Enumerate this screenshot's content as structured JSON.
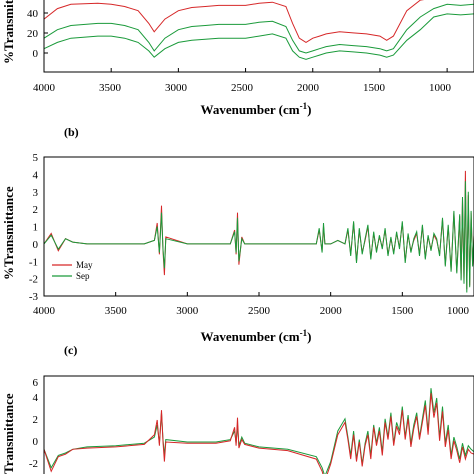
{
  "panels": [
    {
      "panel_label": "",
      "xlabel": "Wavenumber (cm",
      "xlabel_sup": "-1",
      "ylabel": "%Transmittance",
      "x_ticks": [
        "4000",
        "3500",
        "3000",
        "2500",
        "2000",
        "1500",
        "1000"
      ],
      "y_ticks": [
        "0",
        "20",
        "40"
      ]
    },
    {
      "panel_label": "(b)",
      "xlabel": "Wavenumber (cm",
      "xlabel_sup": "-1",
      "ylabel": "%Transmittance",
      "x_ticks": [
        "4000",
        "3500",
        "3000",
        "2500",
        "2000",
        "1500",
        "1000"
      ],
      "y_ticks": [
        "-3",
        "-2",
        "-1",
        "0",
        "1",
        "2",
        "3",
        "4",
        "5"
      ],
      "legend": [
        "May",
        "Sep"
      ]
    },
    {
      "panel_label": "(c)",
      "ylabel": "Transmittance",
      "y_ticks": [
        "-2",
        "0",
        "2",
        "4",
        "6"
      ]
    }
  ],
  "colors": {
    "may": "#d62728",
    "sep": "#1a9a3a",
    "axis": "#000000"
  },
  "chart_data": [
    {
      "type": "line",
      "title": "",
      "xlabel": "Wavenumber (cm-1)",
      "ylabel": "%Transmittance",
      "xlim": [
        4000,
        800
      ],
      "ylim": [
        -10,
        60
      ],
      "x_reversed": true,
      "series": [
        {
          "color": "#1a9a3a",
          "x": [
            4000,
            3900,
            3800,
            3600,
            3500,
            3400,
            3300,
            3220,
            3180,
            3100,
            3000,
            2900,
            2800,
            2700,
            2600,
            2500,
            2400,
            2300,
            2200,
            2150,
            2100,
            2050,
            2000,
            1950,
            1900,
            1800,
            1700,
            1600,
            1500,
            1450,
            1400,
            1300,
            1200,
            1100,
            1000,
            900,
            800
          ],
          "y": [
            12,
            18,
            22,
            24,
            24,
            22,
            18,
            10,
            4,
            12,
            18,
            20,
            21,
            22,
            22,
            22,
            24,
            26,
            22,
            10,
            4,
            2,
            4,
            6,
            8,
            10,
            9,
            8,
            6,
            4,
            6,
            20,
            30,
            42,
            45,
            44,
            45
          ]
        },
        {
          "color": "#1a9a3a",
          "x": [
            4000,
            3900,
            3800,
            3600,
            3500,
            3400,
            3300,
            3220,
            3180,
            3100,
            3000,
            2900,
            2800,
            2700,
            2600,
            2500,
            2400,
            2300,
            2200,
            2150,
            2100,
            2050,
            2000,
            1950,
            1900,
            1800,
            1700,
            1600,
            1500,
            1450,
            1400,
            1300,
            1200,
            1100,
            1000,
            900,
            800
          ],
          "y": [
            22,
            30,
            34,
            36,
            36,
            34,
            30,
            18,
            10,
            22,
            30,
            33,
            34,
            35,
            35,
            35,
            37,
            38,
            33,
            20,
            10,
            8,
            10,
            12,
            14,
            16,
            15,
            14,
            12,
            10,
            12,
            30,
            42,
            50,
            54,
            53,
            54
          ]
        },
        {
          "color": "#d62728",
          "x": [
            4000,
            3900,
            3800,
            3600,
            3500,
            3400,
            3300,
            3220,
            3180,
            3100,
            3000,
            2900,
            2800,
            2700,
            2600,
            2500,
            2400,
            2300,
            2200,
            2150,
            2100,
            2050,
            2000,
            1950,
            1900,
            1800,
            1700,
            1600,
            1500,
            1450,
            1400,
            1300,
            1200,
            1100,
            1000,
            900,
            800
          ],
          "y": [
            40,
            50,
            54,
            55,
            54,
            52,
            48,
            36,
            28,
            40,
            48,
            51,
            52,
            53,
            53,
            53,
            55,
            56,
            52,
            36,
            22,
            18,
            22,
            24,
            26,
            28,
            27,
            26,
            24,
            20,
            24,
            48,
            58,
            60,
            60,
            60,
            60
          ]
        }
      ]
    },
    {
      "type": "line",
      "title": "",
      "xlabel": "Wavenumber (cm-1)",
      "ylabel": "%Transmittance",
      "xlim": [
        4000,
        1000
      ],
      "ylim": [
        -3,
        5
      ],
      "x_reversed": true,
      "series": [
        {
          "name": "May",
          "color": "#d62728",
          "x": [
            4000,
            3950,
            3900,
            3850,
            3800,
            3700,
            3500,
            3300,
            3230,
            3210,
            3195,
            3180,
            3170,
            3160,
            3150,
            3000,
            2800,
            2700,
            2670,
            2660,
            2650,
            2640,
            2620,
            2600,
            2500,
            2300,
            2100,
            2080,
            2060,
            2050,
            2040,
            2000,
            1950,
            1900,
            1880,
            1860,
            1840,
            1820,
            1800,
            1780,
            1760,
            1740,
            1720,
            1700,
            1680,
            1660,
            1640,
            1620,
            1600,
            1580,
            1560,
            1540,
            1520,
            1500,
            1480,
            1460,
            1440,
            1420,
            1400,
            1380,
            1360,
            1340,
            1320,
            1300,
            1280,
            1260,
            1240,
            1220,
            1200,
            1180,
            1160,
            1140,
            1120,
            1100,
            1090,
            1080,
            1070,
            1060,
            1050,
            1040,
            1030,
            1020,
            1010,
            1000
          ],
          "y": [
            0,
            0.6,
            -0.4,
            0.3,
            0.1,
            0,
            0,
            0,
            0.2,
            1.2,
            -0.6,
            2.2,
            -0.4,
            -1.8,
            0.4,
            0,
            0,
            0,
            0.8,
            -0.6,
            1.8,
            -1.2,
            0.4,
            0,
            0,
            0,
            0,
            0.8,
            -0.4,
            1.0,
            0,
            0,
            0.2,
            0,
            0.8,
            -0.6,
            1.2,
            -1.0,
            0.8,
            -0.5,
            0.2,
            1.0,
            -0.8,
            0.6,
            -0.4,
            0.4,
            -0.2,
            0.8,
            -0.6,
            0.3,
            -0.5,
            0.6,
            -0.2,
            1.2,
            -1.0,
            0.5,
            -0.4,
            0.2,
            0.6,
            -0.6,
            1.0,
            -0.8,
            0.4,
            -0.3,
            0.5,
            0.2,
            -0.6,
            1.4,
            -1.2,
            1.0,
            -1.5,
            1.8,
            -1.6,
            1.6,
            -2.0,
            2.6,
            -2.2,
            4.2,
            -2.6,
            2.8,
            -2.4,
            1.8,
            -1.2,
            0.5
          ]
        },
        {
          "name": "Sep",
          "color": "#1a9a3a",
          "x": [
            4000,
            3950,
            3900,
            3850,
            3800,
            3700,
            3500,
            3300,
            3230,
            3210,
            3195,
            3180,
            3170,
            3160,
            3150,
            3000,
            2800,
            2700,
            2670,
            2660,
            2650,
            2640,
            2620,
            2600,
            2500,
            2300,
            2100,
            2080,
            2060,
            2050,
            2040,
            2000,
            1950,
            1900,
            1880,
            1860,
            1840,
            1820,
            1800,
            1780,
            1760,
            1740,
            1720,
            1700,
            1680,
            1660,
            1640,
            1620,
            1600,
            1580,
            1560,
            1540,
            1520,
            1500,
            1480,
            1460,
            1440,
            1420,
            1400,
            1380,
            1360,
            1340,
            1320,
            1300,
            1280,
            1260,
            1240,
            1220,
            1200,
            1180,
            1160,
            1140,
            1120,
            1100,
            1090,
            1080,
            1070,
            1060,
            1050,
            1040,
            1030,
            1020,
            1010,
            1000
          ],
          "y": [
            0,
            0.5,
            -0.3,
            0.3,
            0.1,
            0,
            0,
            0,
            0.2,
            1.0,
            -0.5,
            1.8,
            -0.3,
            -1.4,
            0.3,
            0,
            0,
            0,
            0.7,
            -0.5,
            1.5,
            -1.0,
            0.3,
            0,
            0,
            0,
            0,
            0.9,
            -0.5,
            1.2,
            0,
            0,
            0.2,
            0,
            0.9,
            -0.7,
            1.3,
            -1.1,
            0.9,
            -0.6,
            0.3,
            1.1,
            -0.9,
            0.7,
            -0.5,
            0.5,
            -0.3,
            0.9,
            -0.7,
            0.4,
            -0.6,
            0.7,
            -0.3,
            1.3,
            -1.1,
            0.6,
            -0.5,
            0.3,
            0.7,
            -0.7,
            1.1,
            -0.9,
            0.5,
            -0.4,
            0.6,
            0.3,
            -0.7,
            1.5,
            -1.3,
            1.1,
            -1.6,
            1.9,
            -1.7,
            1.7,
            -2.1,
            2.7,
            -2.3,
            3.6,
            -2.8,
            3.0,
            -2.5,
            1.9,
            -1.3,
            0.5
          ]
        }
      ]
    },
    {
      "type": "line",
      "title": "",
      "xlabel": "",
      "ylabel": "Transmittance",
      "xlim": [
        4000,
        1000
      ],
      "ylim": [
        -3,
        6
      ],
      "x_reversed": true,
      "series": [
        {
          "color": "#1a9a3a",
          "x": [
            4000,
            3950,
            3900,
            3850,
            3800,
            3700,
            3500,
            3300,
            3230,
            3210,
            3195,
            3180,
            3170,
            3160,
            3150,
            3000,
            2800,
            2700,
            2670,
            2660,
            2650,
            2640,
            2620,
            2600,
            2500,
            2300,
            2100,
            2060,
            2040,
            2000,
            1950,
            1900,
            1880,
            1860,
            1840,
            1820,
            1800,
            1780,
            1760,
            1740,
            1720,
            1700,
            1680,
            1660,
            1640,
            1620,
            1600,
            1580,
            1560,
            1540,
            1520,
            1500,
            1480,
            1460,
            1440,
            1420,
            1400,
            1380,
            1360,
            1340,
            1320,
            1300,
            1280,
            1260,
            1240,
            1220,
            1200,
            1180,
            1160,
            1140,
            1120,
            1100,
            1080,
            1060,
            1040,
            1020,
            1000
          ],
          "y": [
            0,
            -1.5,
            -0.5,
            -0.3,
            0,
            0.2,
            0.3,
            0.5,
            1.0,
            2.0,
            0.5,
            3.0,
            0.8,
            -0.5,
            0.8,
            0.6,
            0.6,
            0.8,
            1.5,
            0.5,
            2.0,
            0.3,
            1.0,
            0.5,
            0.2,
            0,
            -0.6,
            -1.5,
            -2.2,
            -1.0,
            1.5,
            2.5,
            1.0,
            -0.5,
            1.5,
            -0.8,
            0.8,
            -1.2,
            0.5,
            1.5,
            -0.5,
            2.0,
            0.5,
            1.8,
            -0.2,
            2.5,
            1.0,
            3.0,
            0.5,
            2.2,
            1.5,
            3.5,
            1.0,
            2.8,
            0.5,
            2.0,
            3.0,
            1.0,
            2.5,
            4.0,
            1.5,
            5.0,
            3.0,
            4.2,
            1.0,
            3.5,
            0.5,
            2.0,
            -0.5,
            1.0,
            0.2,
            -0.8,
            0.5,
            -0.5,
            0.3,
            0,
            -0.2
          ]
        },
        {
          "color": "#d62728",
          "x": [
            4000,
            3950,
            3900,
            3850,
            3800,
            3700,
            3500,
            3300,
            3230,
            3210,
            3195,
            3180,
            3170,
            3160,
            3150,
            3000,
            2800,
            2700,
            2670,
            2660,
            2650,
            2640,
            2620,
            2600,
            2500,
            2300,
            2100,
            2060,
            2040,
            2000,
            1950,
            1900,
            1880,
            1860,
            1840,
            1820,
            1800,
            1780,
            1760,
            1740,
            1720,
            1700,
            1680,
            1660,
            1640,
            1620,
            1600,
            1580,
            1560,
            1540,
            1520,
            1500,
            1480,
            1460,
            1440,
            1420,
            1400,
            1380,
            1360,
            1340,
            1320,
            1300,
            1280,
            1260,
            1240,
            1220,
            1200,
            1180,
            1160,
            1140,
            1120,
            1100,
            1080,
            1060,
            1040,
            1020,
            1000
          ],
          "y": [
            0,
            -1.8,
            -0.6,
            -0.4,
            0,
            0.1,
            0.2,
            0.4,
            1.2,
            2.4,
            0.3,
            3.2,
            0.6,
            -1.0,
            0.6,
            0.5,
            0.5,
            0.7,
            1.8,
            0.3,
            2.6,
            0.1,
            0.8,
            0.4,
            0.1,
            -0.1,
            -0.8,
            -1.8,
            -2.6,
            -1.2,
            1.2,
            2.2,
            0.8,
            -0.8,
            1.2,
            -1.0,
            0.6,
            -1.4,
            0.3,
            1.2,
            -0.8,
            1.8,
            0.3,
            1.5,
            -0.5,
            2.2,
            0.8,
            2.7,
            0.3,
            1.9,
            1.2,
            3.2,
            0.8,
            2.5,
            0.2,
            1.7,
            2.7,
            0.8,
            2.2,
            3.6,
            1.2,
            4.6,
            2.6,
            3.8,
            0.7,
            3.1,
            0.2,
            1.6,
            -0.8,
            0.7,
            -0.1,
            -1.1,
            0.2,
            -0.8,
            0.0,
            -0.3,
            -0.4
          ]
        }
      ]
    }
  ]
}
